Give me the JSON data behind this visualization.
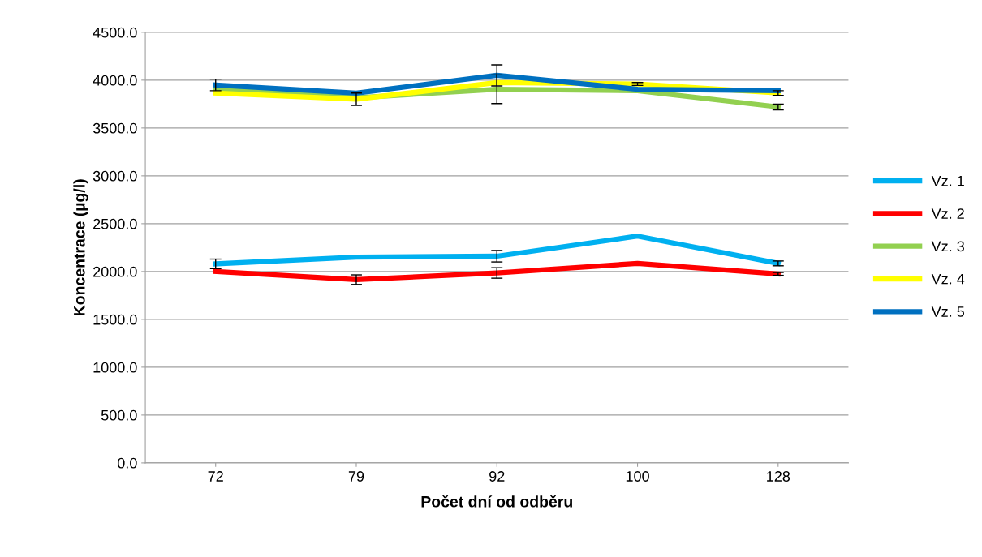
{
  "chart_data": {
    "type": "line",
    "xlabel": "Počet dní od odběru",
    "ylabel": "Koncentrace (µg/l)",
    "categories": [
      "72",
      "79",
      "92",
      "100",
      "128"
    ],
    "series": [
      {
        "name": "Vz. 1",
        "color": "#00b0f0",
        "values": [
          2080,
          2150,
          2160,
          2370,
          2085
        ],
        "errors": [
          50,
          null,
          60,
          null,
          25
        ]
      },
      {
        "name": "Vz. 2",
        "color": "#ff0000",
        "values": [
          2000,
          1915,
          1985,
          2085,
          1975
        ],
        "errors": [
          null,
          50,
          55,
          null,
          15
        ]
      },
      {
        "name": "Vz. 3",
        "color": "#92d050",
        "values": [
          3905,
          3815,
          3905,
          3890,
          3720
        ],
        "errors": [
          null,
          null,
          150,
          null,
          30
        ]
      },
      {
        "name": "Vz. 4",
        "color": "#ffff00",
        "values": [
          3865,
          3800,
          3975,
          3960,
          3865
        ],
        "errors": [
          null,
          65,
          null,
          15,
          25
        ]
      },
      {
        "name": "Vz. 5",
        "color": "#0070c0",
        "values": [
          3950,
          3865,
          4050,
          3905,
          3890
        ],
        "errors": [
          60,
          null,
          110,
          null,
          null
        ]
      }
    ],
    "ylim": [
      0,
      4500
    ],
    "yticks": [
      {
        "value": 0,
        "label": "0.0"
      },
      {
        "value": 500,
        "label": "500.0"
      },
      {
        "value": 1000,
        "label": "1000.0"
      },
      {
        "value": 1500,
        "label": "1500.0"
      },
      {
        "value": 2000,
        "label": "2000.0"
      },
      {
        "value": 2500,
        "label": "2500.0"
      },
      {
        "value": 3000,
        "label": "3000.0"
      },
      {
        "value": 3500,
        "label": "3500.0"
      },
      {
        "value": 4000,
        "label": "4000.0"
      },
      {
        "value": 4500,
        "label": "4500.0"
      }
    ],
    "grid": "y",
    "legend": "right",
    "marker": "none",
    "line_style": "solid"
  }
}
